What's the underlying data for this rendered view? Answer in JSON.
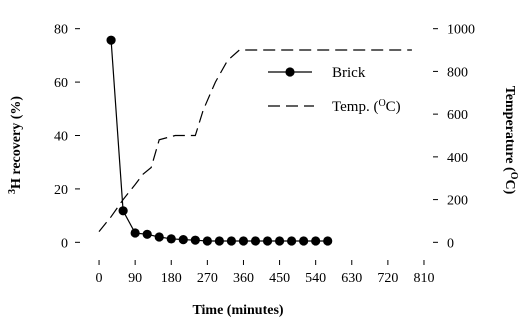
{
  "chart_data": {
    "type": "line",
    "title": "",
    "xlabel": "Time (minutes)",
    "ylabel_left": {
      "sup": "3",
      "text": "H recovery (%)"
    },
    "ylabel_right": {
      "text": "Temperature (",
      "sup": "O",
      "tail": "C)"
    },
    "xlim": [
      -40,
      830
    ],
    "ylim_left": [
      -4,
      84
    ],
    "ylim_right": [
      -50,
      1050
    ],
    "x_ticks": [
      0,
      90,
      180,
      270,
      360,
      450,
      540,
      630,
      720,
      810
    ],
    "y_left_ticks": [
      0,
      20,
      40,
      60,
      80
    ],
    "y_right_ticks": [
      0,
      200,
      400,
      600,
      800,
      1000
    ],
    "grid": false,
    "legend_position": "top-right",
    "series": [
      {
        "name": "Brick",
        "style": "solid line with filled circle markers",
        "axis": "left",
        "x": [
          30,
          60,
          90,
          120,
          150,
          180,
          210,
          240,
          270,
          300,
          330,
          360,
          390,
          420,
          450,
          480,
          510,
          540,
          570
        ],
        "y": [
          75.7,
          11.8,
          3.5,
          3.0,
          2.0,
          1.3,
          1.0,
          0.8,
          0.5,
          0.5,
          0.5,
          0.5,
          0.5,
          0.5,
          0.5,
          0.5,
          0.5,
          0.5,
          0.5
        ]
      },
      {
        "name": "Temp. (OC)",
        "legend_label": {
          "text": "Temp. (",
          "sup": "O",
          "tail": "C)"
        },
        "style": "dashed line",
        "axis": "right",
        "x": [
          0,
          30,
          60,
          90,
          110,
          130,
          150,
          170,
          190,
          220,
          240,
          260,
          290,
          320,
          350,
          380,
          450,
          540,
          630,
          720,
          780
        ],
        "y": [
          50,
          120,
          200,
          270,
          320,
          350,
          480,
          490,
          500,
          500,
          500,
          620,
          750,
          850,
          900,
          900,
          900,
          900,
          900,
          900,
          900
        ]
      }
    ]
  }
}
